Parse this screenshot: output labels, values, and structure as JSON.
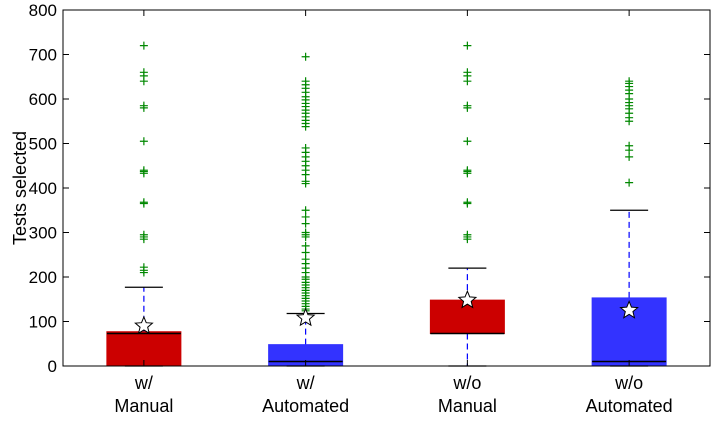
{
  "chart_data": {
    "type": "box",
    "ylabel": "Tests selected",
    "ylim": [
      0,
      800
    ],
    "yticks": [
      0,
      100,
      200,
      300,
      400,
      500,
      600,
      700,
      800
    ],
    "categories": [
      {
        "line1": "w/",
        "line2": "Manual"
      },
      {
        "line1": "w/",
        "line2": "Automated"
      },
      {
        "line1": "w/o",
        "line2": "Manual"
      },
      {
        "line1": "w/o",
        "line2": "Automated"
      }
    ],
    "boxes": [
      {
        "color": "#cc0000",
        "q1": 0,
        "median": 73,
        "q3": 77,
        "whisker_low": 0,
        "whisker_high": 177,
        "mean": 90,
        "outliers": [
          720,
          660,
          652,
          640,
          585,
          580,
          505,
          440,
          437,
          433,
          368,
          365,
          295,
          290,
          285,
          222,
          215,
          210
        ]
      },
      {
        "color": "#3333ff",
        "q1": 0,
        "median": 10,
        "q3": 48,
        "whisker_low": 0,
        "whisker_high": 118,
        "mean": 108,
        "outliers": [
          695,
          640,
          632,
          624,
          615,
          605,
          598,
          590,
          583,
          575,
          568,
          560,
          552,
          545,
          538,
          490,
          480,
          470,
          460,
          450,
          440,
          430,
          415,
          410,
          350,
          335,
          320,
          300,
          295,
          290,
          270,
          255,
          240,
          230,
          220,
          210,
          200,
          195,
          188,
          182,
          176,
          170,
          164,
          158,
          152,
          146,
          140,
          134,
          128,
          124
        ]
      },
      {
        "color": "#cc0000",
        "q1": 73,
        "median": 73,
        "q3": 148,
        "whisker_low": 0,
        "whisker_high": 220,
        "mean": 148,
        "outliers": [
          720,
          660,
          652,
          640,
          585,
          580,
          505,
          440,
          437,
          433,
          368,
          365,
          295,
          290,
          285
        ]
      },
      {
        "color": "#3333ff",
        "q1": 0,
        "median": 10,
        "q3": 153,
        "whisker_low": 0,
        "whisker_high": 350,
        "mean": 125,
        "outliers": [
          640,
          635,
          628,
          620,
          612,
          600,
          592,
          585,
          578,
          568,
          558,
          550,
          495,
          485,
          470,
          412
        ]
      }
    ],
    "outlier_color": "#008800",
    "whisker_color": "#0000ff",
    "grid": false,
    "legend": "none"
  }
}
